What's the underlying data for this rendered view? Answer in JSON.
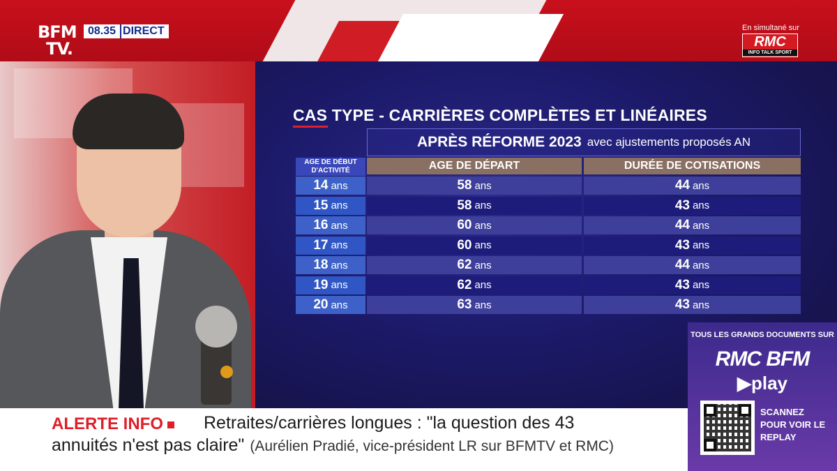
{
  "channel": {
    "logo_line1": "BFM",
    "logo_line2": "TV.",
    "time": "08.35",
    "live": "DIRECT",
    "simulcast": "En simultané sur",
    "partner_logo": "RMC",
    "partner_tagline": "INFO TALK SPORT"
  },
  "table": {
    "title": "CAS TYPE - CARRIÈRES COMPLÈTES ET LINÉAIRES",
    "subtitle_main": "APRÈS RÉFORME 2023",
    "subtitle_rest": "avec ajustements proposés AN",
    "col_start": "AGE DE DÉBUT D'ACTIVITÉ",
    "col_age": "AGE DE DÉPART",
    "col_dur": "DURÉE DE COTISATIONS",
    "unit": "ans",
    "rows": [
      {
        "start": "14",
        "age": "58",
        "dur": "44"
      },
      {
        "start": "15",
        "age": "58",
        "dur": "43"
      },
      {
        "start": "16",
        "age": "60",
        "dur": "44"
      },
      {
        "start": "17",
        "age": "60",
        "dur": "43"
      },
      {
        "start": "18",
        "age": "62",
        "dur": "44"
      },
      {
        "start": "19",
        "age": "62",
        "dur": "43"
      },
      {
        "start": "20",
        "age": "63",
        "dur": "43"
      }
    ]
  },
  "promo": {
    "top": "TOUS LES GRANDS DOCUMENTS SUR",
    "brand": "RMC BFM",
    "play": "▶play",
    "scan": "SCANNEZ POUR VOIR LE REPLAY"
  },
  "ticker": {
    "alert": "ALERTE INFO",
    "line1": "Retraites/carrières longues : \"la question des 43",
    "line2": "annuités n'est pas claire\"",
    "source": "(Aurélien Pradié, vice-président LR sur BFMTV et RMC)"
  },
  "colors": {
    "brand_red": "#c8101c",
    "panel_blue": "#1c1a6a",
    "alert_red": "#e01e2a"
  }
}
